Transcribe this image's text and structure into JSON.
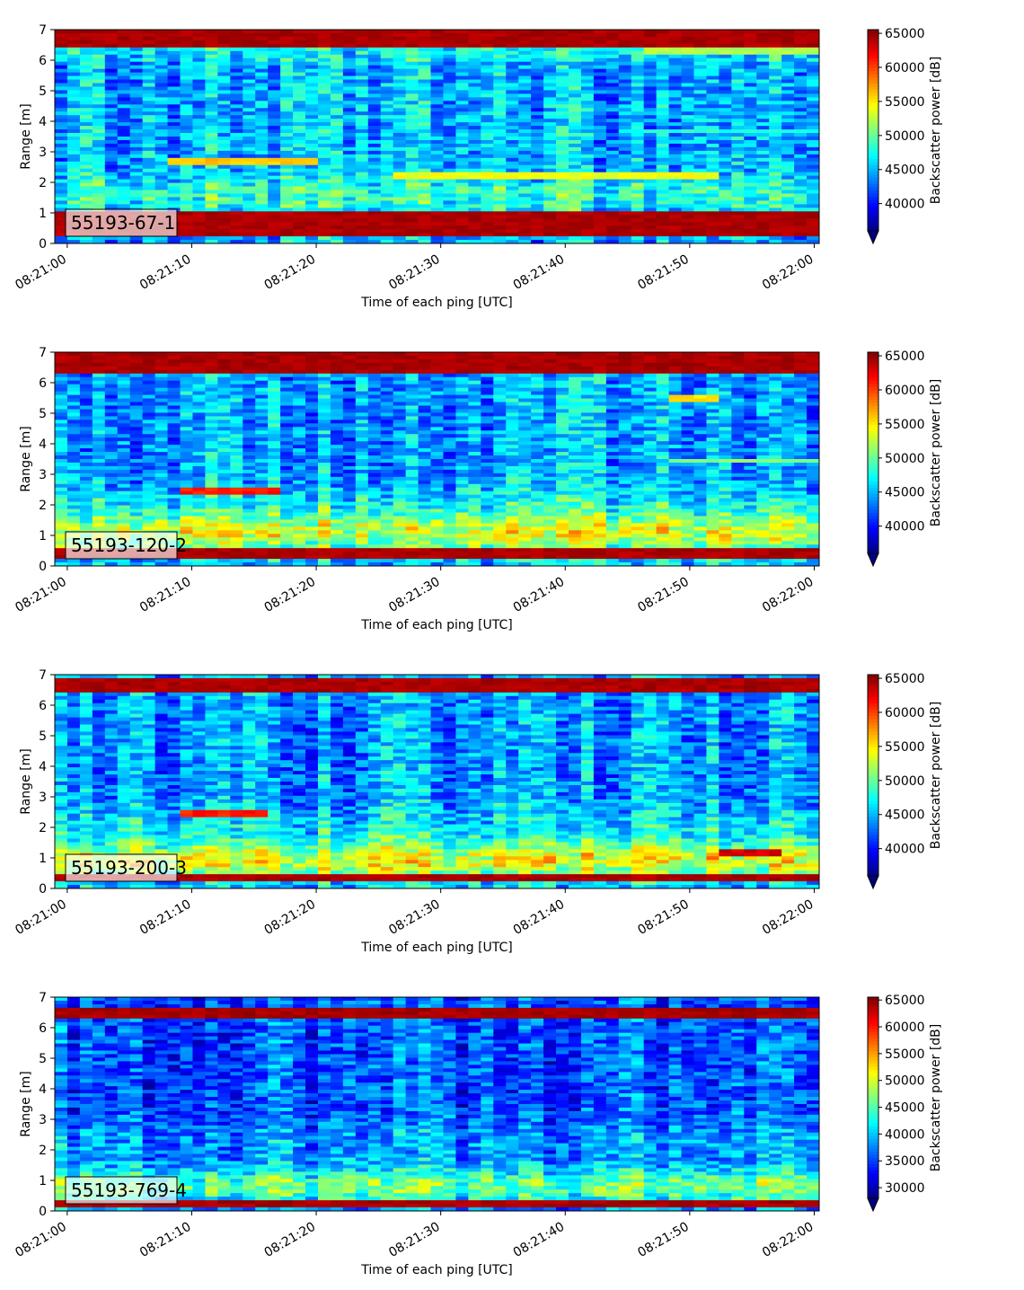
{
  "chart_data": [
    {
      "type": "heatmap",
      "panel_label": "55193-67-1",
      "xlabel": "Time of each ping [UTC]",
      "ylabel": "Range [m]",
      "x_ticks": [
        "08:21:00",
        "08:21:10",
        "08:21:20",
        "08:21:30",
        "08:21:40",
        "08:21:50",
        "08:22:00"
      ],
      "x_range": [
        "08:20:59",
        "08:22:00"
      ],
      "y_ticks": [
        "0",
        "1",
        "2",
        "3",
        "4",
        "5",
        "6",
        "7"
      ],
      "ylim": [
        0,
        7
      ],
      "colorbar_label": "Backscatter power [dB]",
      "colorbar_ticks": [
        "40000",
        "45000",
        "50000",
        "55000",
        "60000",
        "65000"
      ],
      "colorbar_range": [
        36000,
        65535
      ],
      "colormap": "jet",
      "colorbar_extend": "min",
      "features": [
        {
          "name": "surface band",
          "range_m": [
            0.25,
            1.1
          ],
          "value": 65000
        },
        {
          "name": "top band",
          "range_m": [
            6.45,
            7.0
          ],
          "value": 65000
        },
        {
          "name": "echo layer",
          "time_s": [
            8,
            20
          ],
          "range_m": 2.7,
          "value": 57000
        },
        {
          "name": "echo layer",
          "time_s": [
            26,
            52
          ],
          "range_m": 2.2,
          "value": 55000
        },
        {
          "name": "echo layer",
          "time_s": [
            46,
            61
          ],
          "range_m": 3.7,
          "value": 49000
        },
        {
          "name": "echo layer",
          "time_s": [
            46,
            61
          ],
          "range_m": 6.3,
          "value": 53000
        }
      ]
    },
    {
      "type": "heatmap",
      "panel_label": "55193-120-2",
      "xlabel": "Time of each ping [UTC]",
      "ylabel": "Range [m]",
      "x_ticks": [
        "08:21:00",
        "08:21:10",
        "08:21:20",
        "08:21:30",
        "08:21:40",
        "08:21:50",
        "08:22:00"
      ],
      "x_range": [
        "08:20:59",
        "08:22:00"
      ],
      "y_ticks": [
        "0",
        "1",
        "2",
        "3",
        "4",
        "5",
        "6",
        "7"
      ],
      "ylim": [
        0,
        7
      ],
      "colorbar_label": "Backscatter power [dB]",
      "colorbar_ticks": [
        "40000",
        "45000",
        "50000",
        "55000",
        "60000",
        "65000"
      ],
      "colorbar_range": [
        36000,
        65535
      ],
      "colormap": "jet",
      "colorbar_extend": "min",
      "features": [
        {
          "name": "surface band",
          "range_m": [
            0.25,
            0.6
          ],
          "value": 65000
        },
        {
          "name": "top band",
          "range_m": [
            6.35,
            7.0
          ],
          "value": 65000
        },
        {
          "name": "echo layer",
          "time_s": [
            9,
            17
          ],
          "range_m": 2.45,
          "value": 62000
        },
        {
          "name": "echo layer",
          "time_s": [
            48,
            52
          ],
          "range_m": 5.5,
          "value": 56000
        },
        {
          "name": "echo layer",
          "time_s": [
            48,
            61
          ],
          "range_m": 3.45,
          "value": 52000
        }
      ]
    },
    {
      "type": "heatmap",
      "panel_label": "55193-200-3",
      "xlabel": "Time of each ping [UTC]",
      "ylabel": "Range [m]",
      "x_ticks": [
        "08:21:00",
        "08:21:10",
        "08:21:20",
        "08:21:30",
        "08:21:40",
        "08:21:50",
        "08:22:00"
      ],
      "x_range": [
        "08:20:59",
        "08:22:00"
      ],
      "y_ticks": [
        "0",
        "1",
        "2",
        "3",
        "4",
        "5",
        "6",
        "7"
      ],
      "ylim": [
        0,
        7
      ],
      "colorbar_label": "Backscatter power [dB]",
      "colorbar_ticks": [
        "40000",
        "45000",
        "50000",
        "55000",
        "60000",
        "65000"
      ],
      "colorbar_range": [
        36000,
        65535
      ],
      "colormap": "jet",
      "colorbar_extend": "min",
      "features": [
        {
          "name": "surface band",
          "range_m": [
            0.25,
            0.5
          ],
          "value": 65000
        },
        {
          "name": "top band",
          "range_m": [
            6.4,
            6.9
          ],
          "value": 65000
        },
        {
          "name": "echo layer",
          "time_s": [
            9,
            16
          ],
          "range_m": 2.45,
          "value": 62000
        },
        {
          "name": "echo layer",
          "time_s": [
            52,
            57
          ],
          "range_m": 1.15,
          "value": 64000
        }
      ]
    },
    {
      "type": "heatmap",
      "panel_label": "55193-769-4",
      "xlabel": "Time of each ping [UTC]",
      "ylabel": "Range [m]",
      "x_ticks": [
        "08:21:00",
        "08:21:10",
        "08:21:20",
        "08:21:30",
        "08:21:40",
        "08:21:50",
        "08:22:00"
      ],
      "x_range": [
        "08:20:59",
        "08:22:00"
      ],
      "y_ticks": [
        "0",
        "1",
        "2",
        "3",
        "4",
        "5",
        "6",
        "7"
      ],
      "ylim": [
        0,
        7
      ],
      "colorbar_label": "Backscatter power [dB]",
      "colorbar_ticks": [
        "30000",
        "35000",
        "40000",
        "45000",
        "50000",
        "55000",
        "60000",
        "65000"
      ],
      "colorbar_range": [
        28000,
        65535
      ],
      "colormap": "jet",
      "colorbar_extend": "min",
      "features": [
        {
          "name": "surface band",
          "range_m": [
            0.15,
            0.35
          ],
          "value": 65000
        },
        {
          "name": "top band",
          "range_m": [
            6.3,
            6.6
          ],
          "value": 65000
        }
      ]
    }
  ]
}
